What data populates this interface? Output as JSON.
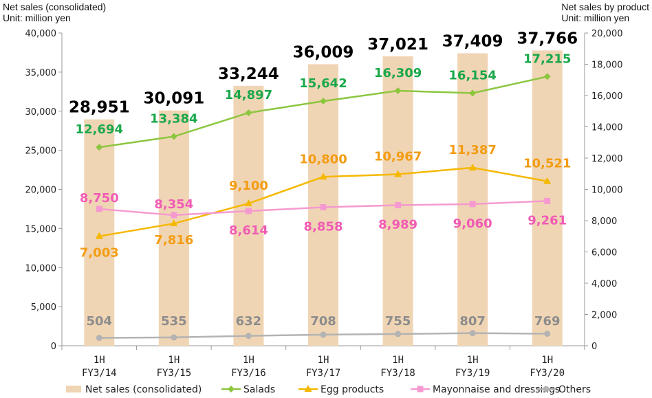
{
  "chart_data": {
    "type": "bar+line",
    "left_axis": {
      "label_line1": "Net sales (consolidated)",
      "label_line2": "Unit: million yen",
      "range": [
        0,
        40000
      ],
      "ticks": [
        "0",
        "5,000",
        "10,000",
        "15,000",
        "20,000",
        "25,000",
        "30,000",
        "35,000",
        "40,000"
      ]
    },
    "right_axis": {
      "label_line1": "Net sales by product",
      "label_line2": "Unit: million yen",
      "range": [
        0,
        20000
      ],
      "ticks": [
        "0",
        "2,000",
        "4,000",
        "6,000",
        "8,000",
        "10,000",
        "12,000",
        "14,000",
        "16,000",
        "18,000",
        "20,000"
      ]
    },
    "categories": [
      {
        "line1": "1H",
        "line2": "FY3/14"
      },
      {
        "line1": "1H",
        "line2": "FY3/15"
      },
      {
        "line1": "1H",
        "line2": "FY3/16"
      },
      {
        "line1": "1H",
        "line2": "FY3/17"
      },
      {
        "line1": "1H",
        "line2": "FY3/18"
      },
      {
        "line1": "1H",
        "line2": "FY3/19"
      },
      {
        "line1": "1H",
        "line2": "FY3/20"
      }
    ],
    "bars": {
      "name": "Net sales (consolidated)",
      "color": "#f0d5b4",
      "values": [
        28951,
        30091,
        33244,
        36009,
        37021,
        37409,
        37766
      ],
      "labels": [
        "28,951",
        "30,091",
        "33,244",
        "36,009",
        "37,021",
        "37,409",
        "37,766"
      ]
    },
    "series": [
      {
        "name": "Salads",
        "color": "#8cc63f",
        "label_color": "#1aa84a",
        "marker": "diamond",
        "values": [
          12694,
          13384,
          14897,
          15642,
          16309,
          16154,
          17215
        ],
        "labels": [
          "12,694",
          "13,384",
          "14,897",
          "15,642",
          "16,309",
          "16,154",
          "17,215"
        ]
      },
      {
        "name": "Egg products",
        "color": "#f5b800",
        "label_color": "#f39c12",
        "marker": "triangle",
        "values": [
          7003,
          7816,
          9100,
          10800,
          10967,
          11387,
          10521
        ],
        "labels": [
          "7,003",
          "7,816",
          "9,100",
          "10,800",
          "10,967",
          "11,387",
          "10,521"
        ]
      },
      {
        "name": "Mayonnaise and dressings",
        "color": "#f59ad0",
        "label_color": "#f15bb5",
        "marker": "square",
        "values": [
          8750,
          8354,
          8614,
          8858,
          8989,
          9060,
          9261
        ],
        "labels": [
          "8,750",
          "8,354",
          "8,614",
          "8,858",
          "8,989",
          "9,060",
          "9,261"
        ]
      },
      {
        "name": "Others",
        "color": "#b3b3b3",
        "label_color": "#8c8c8c",
        "marker": "circle",
        "values": [
          504,
          535,
          632,
          708,
          755,
          807,
          769
        ],
        "labels": [
          "504",
          "535",
          "632",
          "708",
          "755",
          "807",
          "769"
        ]
      }
    ],
    "legend_position": "bottom",
    "grid": false
  }
}
